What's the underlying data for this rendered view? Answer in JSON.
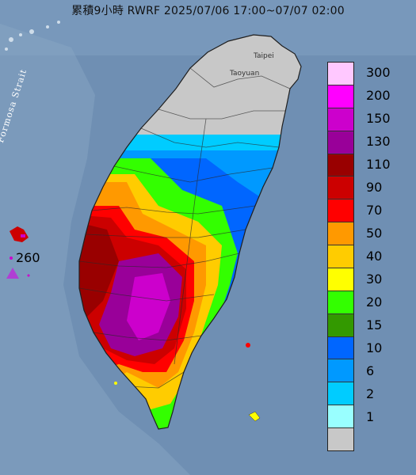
{
  "title": "累積9小時 RWRF 2025/07/06 17:00~07/07 02:00",
  "places": {
    "taipei": "Taipei",
    "taoyuan": "Taoyuan",
    "strait": "Formosa Strait"
  },
  "max": {
    "value": "260",
    "marker_icon": "triangle-max-marker-icon"
  },
  "legend": {
    "levels": [
      {
        "label": "300",
        "color": "#ffc8ff"
      },
      {
        "label": "200",
        "color": "#ff00ff"
      },
      {
        "label": "150",
        "color": "#cc00cc"
      },
      {
        "label": "130",
        "color": "#990099"
      },
      {
        "label": "110",
        "color": "#990000"
      },
      {
        "label": "90",
        "color": "#cc0000"
      },
      {
        "label": "70",
        "color": "#ff0000"
      },
      {
        "label": "50",
        "color": "#ff9900"
      },
      {
        "label": "40",
        "color": "#ffcc00"
      },
      {
        "label": "30",
        "color": "#ffff00"
      },
      {
        "label": "20",
        "color": "#33ff00"
      },
      {
        "label": "15",
        "color": "#339900"
      },
      {
        "label": "10",
        "color": "#0066ff"
      },
      {
        "label": "6",
        "color": "#0099ff"
      },
      {
        "label": "2",
        "color": "#00ccff"
      },
      {
        "label": "1",
        "color": "#99ffff"
      },
      {
        "label": "",
        "color": "#c8c8c8"
      }
    ]
  }
}
